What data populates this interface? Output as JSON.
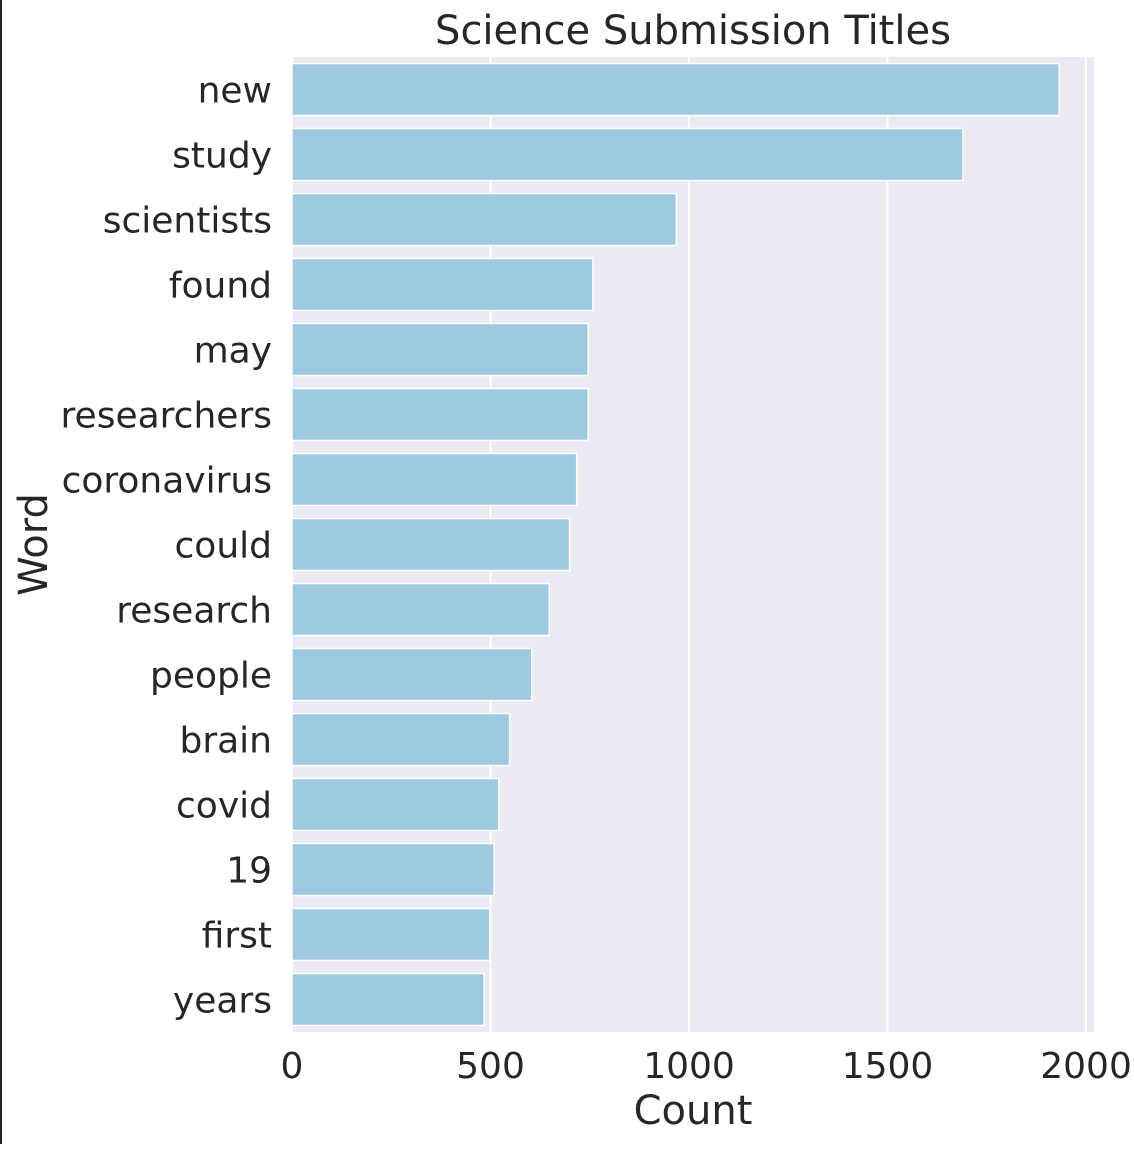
{
  "chart_data": {
    "type": "bar",
    "orientation": "horizontal",
    "title": "Science Submission Titles",
    "xlabel": "Count",
    "ylabel": "Word",
    "xlim": [
      0,
      2020
    ],
    "xticks": [
      0,
      500,
      1000,
      1500,
      2000
    ],
    "grid": true,
    "categories": [
      "new",
      "study",
      "scientists",
      "found",
      "may",
      "researchers",
      "coronavirus",
      "could",
      "research",
      "people",
      "brain",
      "covid",
      "19",
      "first",
      "years"
    ],
    "values": [
      1932,
      1690,
      968,
      758,
      746,
      746,
      717,
      699,
      648,
      604,
      548,
      521,
      509,
      498,
      484
    ],
    "colors": {
      "bar": "#9ecae1",
      "background": "#eaeaf2",
      "grid": "#ffffff",
      "text": "#262626"
    }
  }
}
